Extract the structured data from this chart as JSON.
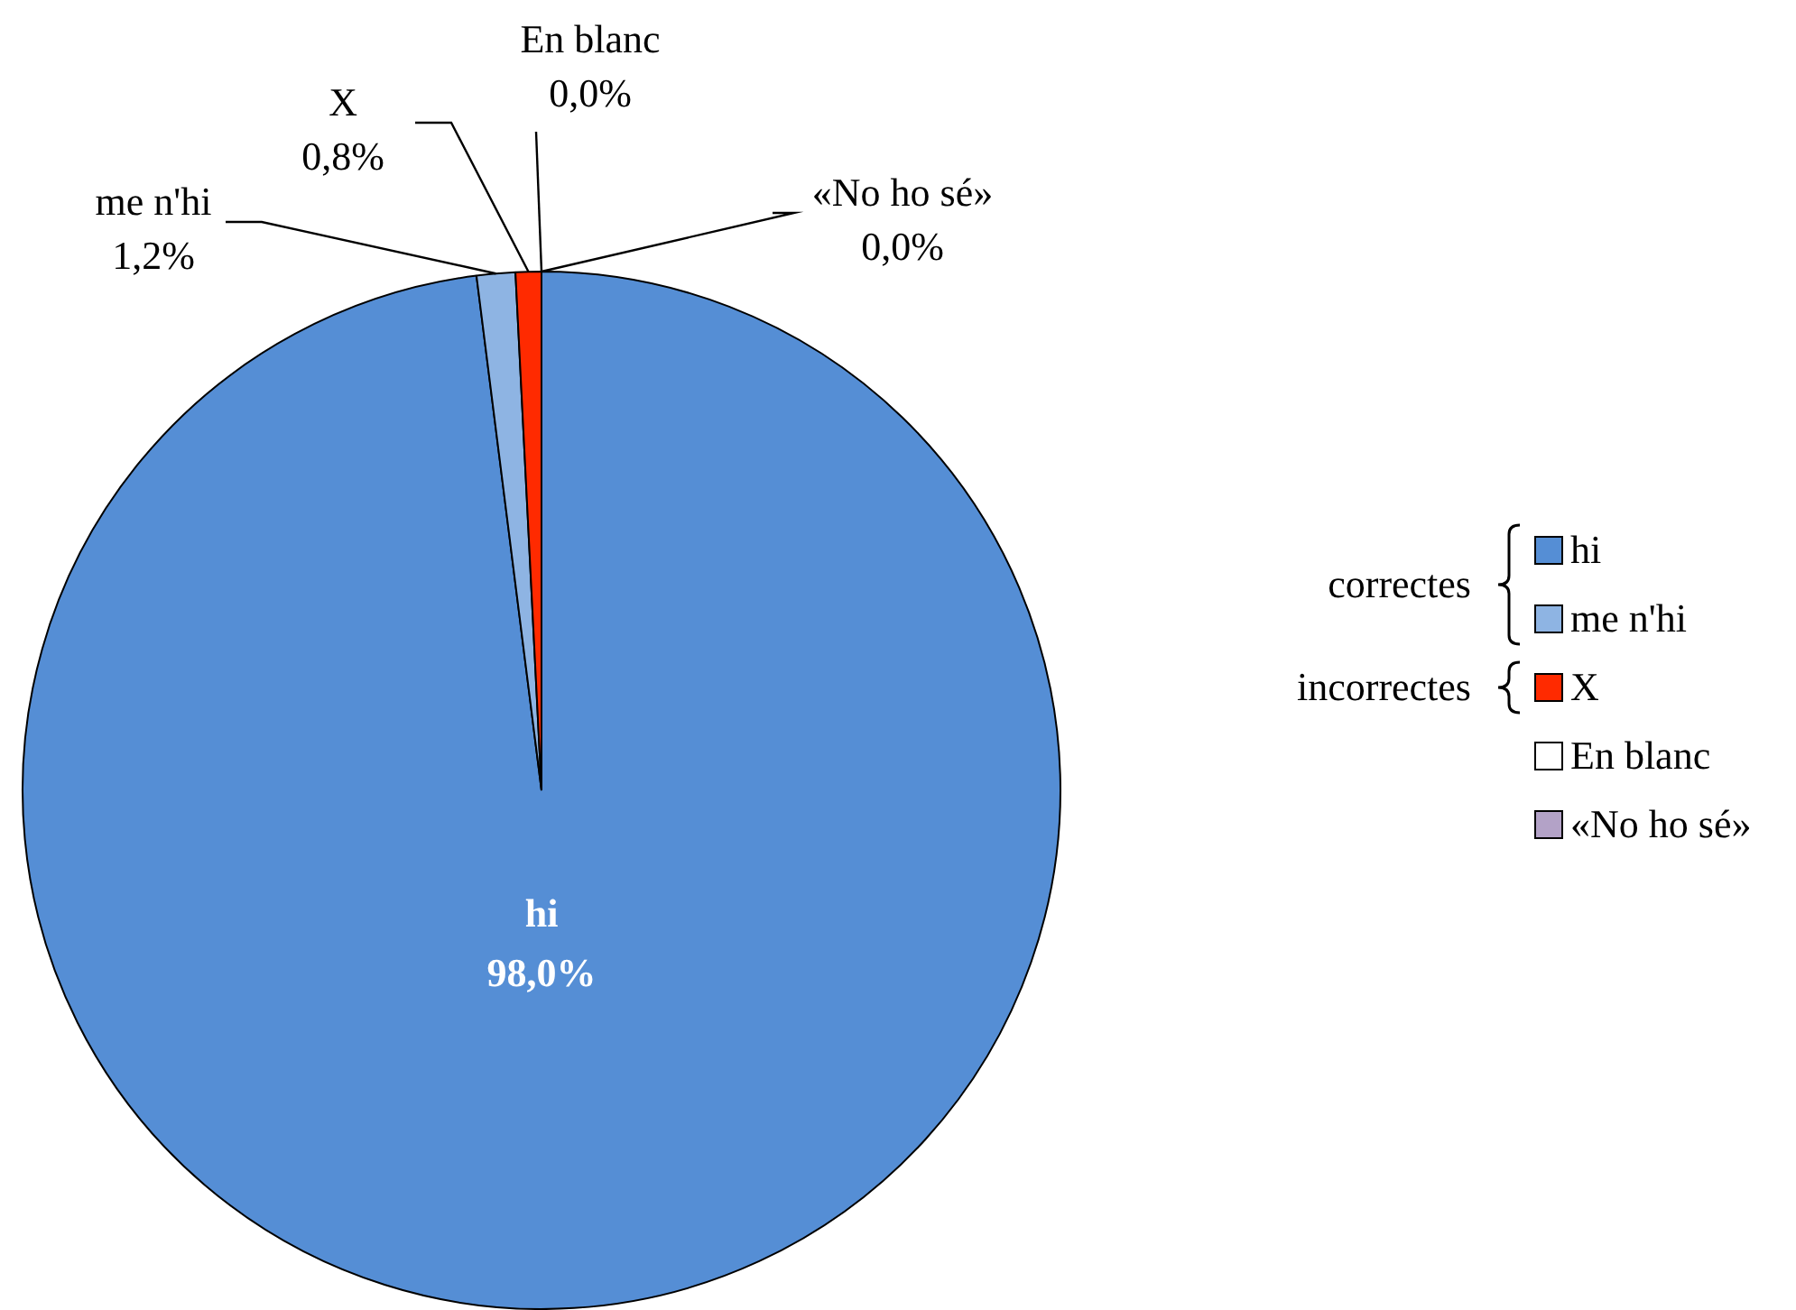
{
  "chart_data": {
    "type": "pie",
    "categories": [
      "hi",
      "me n'hi",
      "X",
      "En blanc",
      "«No ho sé»"
    ],
    "values": [
      98.0,
      1.2,
      0.8,
      0.0,
      0.0
    ],
    "colors": [
      "#558ed5",
      "#8eb4e3",
      "#ff2a00",
      "#ffffff",
      "#b3a2c7"
    ],
    "value_labels": [
      "98,0%",
      "1,2%",
      "0,8%",
      "0,0%",
      "0,0%"
    ],
    "legend": "right",
    "annotations": [
      "correctes",
      "incorrectes"
    ]
  }
}
